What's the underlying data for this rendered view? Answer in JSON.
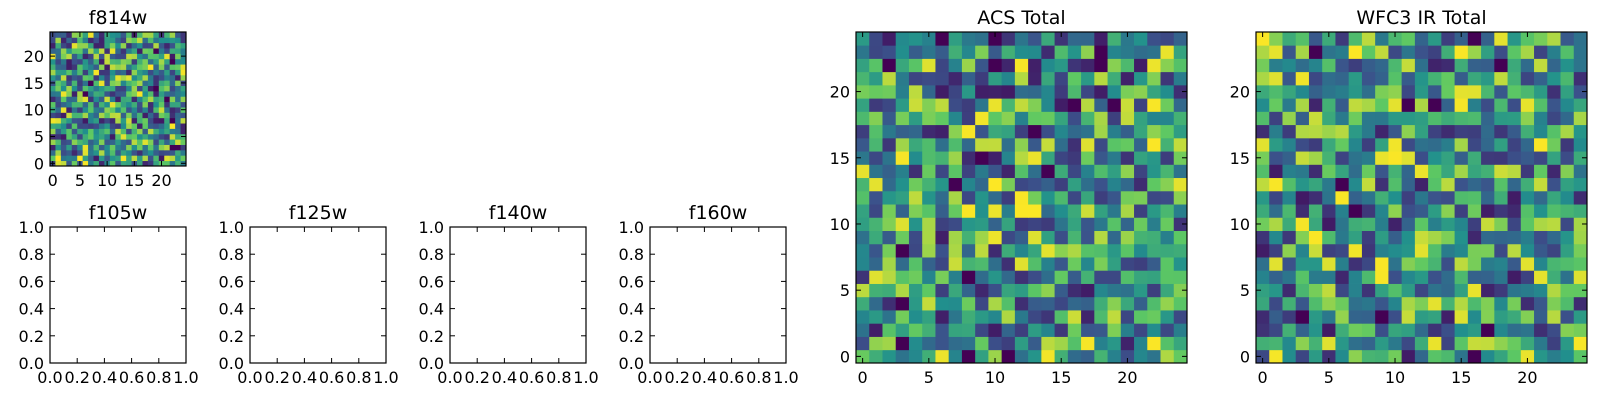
{
  "colormap": [
    "#440154",
    "#3b528b",
    "#21908d",
    "#5dc863",
    "#fde725"
  ],
  "chart_data": [
    {
      "type": "heatmap",
      "title": "f814w",
      "grid_size": 25,
      "xlim": [
        -0.5,
        24.5
      ],
      "ylim": [
        -0.5,
        24.5
      ],
      "xticks": [
        0,
        5,
        10,
        15,
        20
      ],
      "yticks": [
        0,
        5,
        10,
        15,
        20
      ],
      "xtick_labels": [
        "0",
        "5",
        "10",
        "15",
        "20"
      ],
      "ytick_labels": [
        "0",
        "5",
        "10",
        "15",
        "20"
      ],
      "seed": 814,
      "grid": false
    },
    {
      "type": "empty",
      "title": "f105w",
      "xlim": [
        0,
        1
      ],
      "ylim": [
        0,
        1
      ],
      "xticks": [
        0,
        0.2,
        0.4,
        0.6,
        0.8,
        1.0
      ],
      "yticks": [
        0,
        0.2,
        0.4,
        0.6,
        0.8,
        1.0
      ],
      "xtick_labels": [
        "0.0",
        "0.2",
        "0.4",
        "0.6",
        "0.8",
        "1.0"
      ],
      "ytick_labels": [
        "0.0",
        "0.2",
        "0.4",
        "0.6",
        "0.8",
        "1.0"
      ],
      "grid": false
    },
    {
      "type": "empty",
      "title": "f125w",
      "xlim": [
        0,
        1
      ],
      "ylim": [
        0,
        1
      ],
      "xticks": [
        0,
        0.2,
        0.4,
        0.6,
        0.8,
        1.0
      ],
      "yticks": [
        0,
        0.2,
        0.4,
        0.6,
        0.8,
        1.0
      ],
      "xtick_labels": [
        "0.0",
        "0.2",
        "0.4",
        "0.6",
        "0.8",
        "1.0"
      ],
      "ytick_labels": [
        "0.0",
        "0.2",
        "0.4",
        "0.6",
        "0.8",
        "1.0"
      ],
      "grid": false
    },
    {
      "type": "empty",
      "title": "f140w",
      "xlim": [
        0,
        1
      ],
      "ylim": [
        0,
        1
      ],
      "xticks": [
        0,
        0.2,
        0.4,
        0.6,
        0.8,
        1.0
      ],
      "yticks": [
        0,
        0.2,
        0.4,
        0.6,
        0.8,
        1.0
      ],
      "xtick_labels": [
        "0.0",
        "0.2",
        "0.4",
        "0.6",
        "0.8",
        "1.0"
      ],
      "ytick_labels": [
        "0.0",
        "0.2",
        "0.4",
        "0.6",
        "0.8",
        "1.0"
      ],
      "grid": false
    },
    {
      "type": "empty",
      "title": "f160w",
      "xlim": [
        0,
        1
      ],
      "ylim": [
        0,
        1
      ],
      "xticks": [
        0,
        0.2,
        0.4,
        0.6,
        0.8,
        1.0
      ],
      "yticks": [
        0,
        0.2,
        0.4,
        0.6,
        0.8,
        1.0
      ],
      "xtick_labels": [
        "0.0",
        "0.2",
        "0.4",
        "0.6",
        "0.8",
        "1.0"
      ],
      "ytick_labels": [
        "0.0",
        "0.2",
        "0.4",
        "0.6",
        "0.8",
        "1.0"
      ],
      "grid": false
    },
    {
      "type": "heatmap",
      "title": "ACS Total",
      "grid_size": 25,
      "xlim": [
        -0.5,
        24.5
      ],
      "ylim": [
        -0.5,
        24.5
      ],
      "xticks": [
        0,
        5,
        10,
        15,
        20
      ],
      "yticks": [
        0,
        5,
        10,
        15,
        20
      ],
      "xtick_labels": [
        "0",
        "5",
        "10",
        "15",
        "20"
      ],
      "ytick_labels": [
        "0",
        "5",
        "10",
        "15",
        "20"
      ],
      "seed": 2024,
      "grid": false
    },
    {
      "type": "heatmap",
      "title": "WFC3 IR Total",
      "grid_size": 25,
      "xlim": [
        -0.5,
        24.5
      ],
      "ylim": [
        -0.5,
        24.5
      ],
      "xticks": [
        0,
        5,
        10,
        15,
        20
      ],
      "yticks": [
        0,
        5,
        10,
        15,
        20
      ],
      "xtick_labels": [
        "0",
        "5",
        "10",
        "15",
        "20"
      ],
      "ytick_labels": [
        "0",
        "5",
        "10",
        "15",
        "20"
      ],
      "seed": 3,
      "grid": false
    }
  ]
}
